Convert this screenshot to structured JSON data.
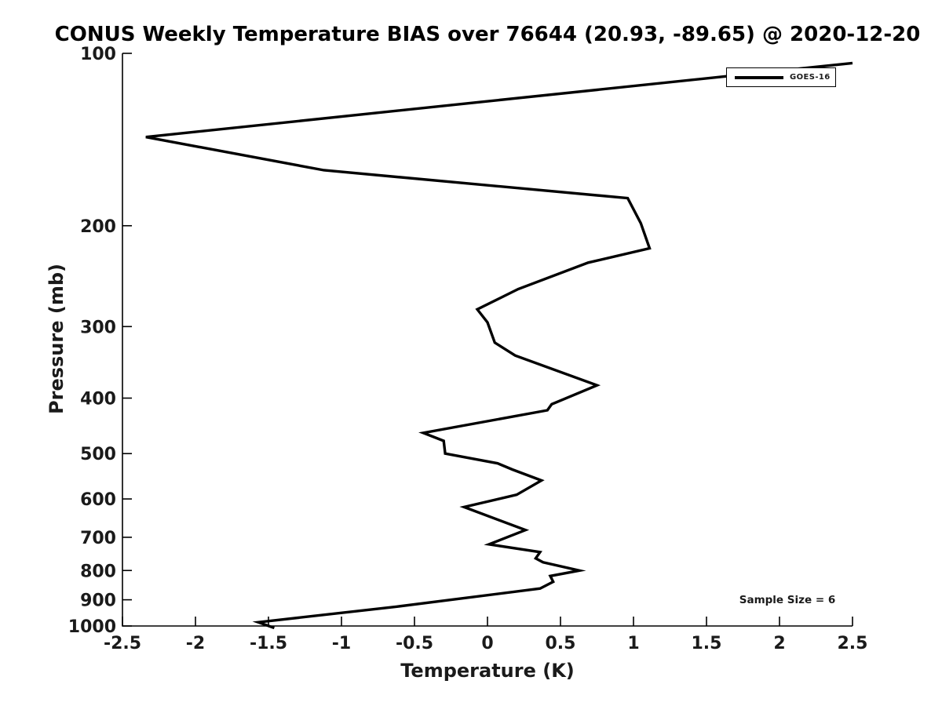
{
  "figure": {
    "title": "CONUS Weekly Temperature BIAS over 76644 (20.93, -89.65) @ 2020-12-20",
    "colors": {
      "line": "#000000",
      "text": "#1a1a1a",
      "background": "#ffffff"
    }
  },
  "legend": {
    "label": "GOES-16",
    "position": "top-right"
  },
  "annotations": {
    "sample_size": "Sample Size = 6"
  },
  "chart_data": {
    "type": "line",
    "title": "CONUS Weekly Temperature BIAS over 76644 (20.93, -89.65) @ 2020-12-20",
    "xlabel": "Temperature (K)",
    "ylabel": "Pressure (mb)",
    "xlim": [
      -2.5,
      2.5
    ],
    "ylim": [
      100,
      1000
    ],
    "y_scale": "log10",
    "y_direction": "increasing-downward",
    "grid": false,
    "x_ticks": [
      -2.5,
      -2,
      -1.5,
      -1,
      -0.5,
      0,
      0.5,
      1,
      1.5,
      2,
      2.5
    ],
    "x_tick_labels": [
      "-2.5",
      "-2",
      "-1.5",
      "-1",
      "-0.5",
      "0",
      "0.5",
      "1",
      "1.5",
      "2",
      "2.5"
    ],
    "y_ticks": [
      100,
      200,
      300,
      400,
      500,
      600,
      700,
      800,
      900,
      1000
    ],
    "y_tick_labels": [
      "100",
      "200",
      "300",
      "400",
      "500",
      "600",
      "700",
      "800",
      "900",
      "1000"
    ],
    "legend_position": "top-right",
    "annotation": "Sample Size = 6",
    "series": [
      {
        "name": "GOES-16",
        "color": "#000000",
        "line_width": 3.4,
        "points_temperature_K_pressure_mb": [
          [
            2.5,
            104
          ],
          [
            -2.34,
            140
          ],
          [
            -1.12,
            160
          ],
          [
            0.96,
            179
          ],
          [
            1.05,
            198
          ],
          [
            1.11,
            219
          ],
          [
            0.69,
            232
          ],
          [
            0.21,
            258
          ],
          [
            -0.07,
            280
          ],
          [
            0.0,
            295
          ],
          [
            0.05,
            320
          ],
          [
            0.19,
            337
          ],
          [
            0.75,
            380
          ],
          [
            0.44,
            410
          ],
          [
            0.41,
            420
          ],
          [
            -0.44,
            460
          ],
          [
            -0.3,
            475
          ],
          [
            -0.29,
            500
          ],
          [
            0.07,
            520
          ],
          [
            0.17,
            533
          ],
          [
            0.37,
            557
          ],
          [
            0.2,
            590
          ],
          [
            -0.16,
            620
          ],
          [
            0.26,
            680
          ],
          [
            0.01,
            720
          ],
          [
            0.36,
            743
          ],
          [
            0.33,
            762
          ],
          [
            0.38,
            774
          ],
          [
            0.63,
            800
          ],
          [
            0.43,
            818
          ],
          [
            0.45,
            837
          ],
          [
            0.36,
            860
          ],
          [
            -0.62,
            925
          ],
          [
            -1.57,
            985
          ],
          [
            -1.46,
            1008
          ]
        ]
      }
    ]
  }
}
